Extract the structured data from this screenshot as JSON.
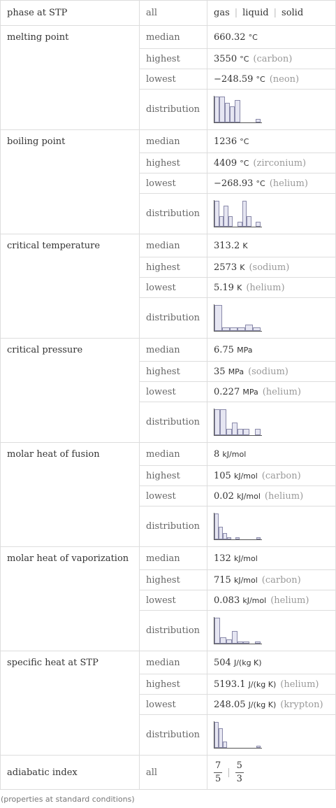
{
  "header": {
    "label": "phase at STP",
    "filter": "all",
    "phases": [
      "gas",
      "liquid",
      "solid"
    ]
  },
  "row_labels": [
    "median",
    "highest",
    "lowest",
    "distribution"
  ],
  "properties": [
    {
      "name": "melting point",
      "median": {
        "value": "660.32",
        "unit": "°C"
      },
      "highest": {
        "value": "3550",
        "unit": "°C",
        "note": "(carbon)"
      },
      "lowest": {
        "value": "−248.59",
        "unit": "°C",
        "note": "(neon)"
      },
      "distribution": [
        8,
        8,
        6,
        5,
        7,
        0,
        0,
        0,
        1
      ]
    },
    {
      "name": "boiling point",
      "median": {
        "value": "1236",
        "unit": "°C"
      },
      "highest": {
        "value": "4409",
        "unit": "°C",
        "note": "(zirconium)"
      },
      "lowest": {
        "value": "−268.93",
        "unit": "°C",
        "note": "(helium)"
      },
      "distribution": [
        5,
        2,
        4,
        2,
        0,
        1,
        5,
        2,
        0,
        1
      ]
    },
    {
      "name": "critical temperature",
      "median": {
        "value": "313.2",
        "unit": "K"
      },
      "highest": {
        "value": "2573",
        "unit": "K",
        "note": "(sodium)"
      },
      "lowest": {
        "value": "5.19",
        "unit": "K",
        "note": "(helium)"
      },
      "distribution": [
        8,
        1,
        1,
        1,
        2,
        1
      ]
    },
    {
      "name": "critical pressure",
      "median": {
        "value": "6.75",
        "unit": "MPa"
      },
      "highest": {
        "value": "35",
        "unit": "MPa",
        "note": "(sodium)"
      },
      "lowest": {
        "value": "0.227",
        "unit": "MPa",
        "note": "(helium)"
      },
      "distribution": [
        4,
        4,
        1,
        2,
        1,
        1,
        0,
        1
      ]
    },
    {
      "name": "molar heat of fusion",
      "median": {
        "value": "8",
        "unit": "kJ/mol"
      },
      "highest": {
        "value": "105",
        "unit": "kJ/mol",
        "note": "(carbon)"
      },
      "lowest": {
        "value": "0.02",
        "unit": "kJ/mol",
        "note": "(helium)"
      },
      "distribution": [
        12,
        6,
        3,
        1,
        0,
        1,
        0,
        0,
        0,
        0,
        1
      ]
    },
    {
      "name": "molar heat of vaporization",
      "median": {
        "value": "132",
        "unit": "kJ/mol"
      },
      "highest": {
        "value": "715",
        "unit": "kJ/mol",
        "note": "(carbon)"
      },
      "lowest": {
        "value": "0.083",
        "unit": "kJ/mol",
        "note": "(helium)"
      },
      "distribution": [
        12,
        3,
        2,
        6,
        1,
        1,
        0,
        1
      ]
    },
    {
      "name": "specific heat at STP",
      "median": {
        "value": "504",
        "unit": "J/(kg K)"
      },
      "highest": {
        "value": "5193.1",
        "unit": "J/(kg K)",
        "note": "(helium)"
      },
      "lowest": {
        "value": "248.05",
        "unit": "J/(kg K)",
        "note": "(krypton)"
      },
      "distribution": [
        12,
        9,
        3,
        0,
        0,
        0,
        0,
        0,
        0,
        0,
        1
      ]
    }
  ],
  "adiabatic_index": {
    "label": "adiabatic index",
    "filter": "all",
    "values": [
      {
        "num": "7",
        "den": "5"
      },
      {
        "num": "5",
        "den": "3"
      }
    ]
  },
  "footer": "(properties at standard conditions)"
}
